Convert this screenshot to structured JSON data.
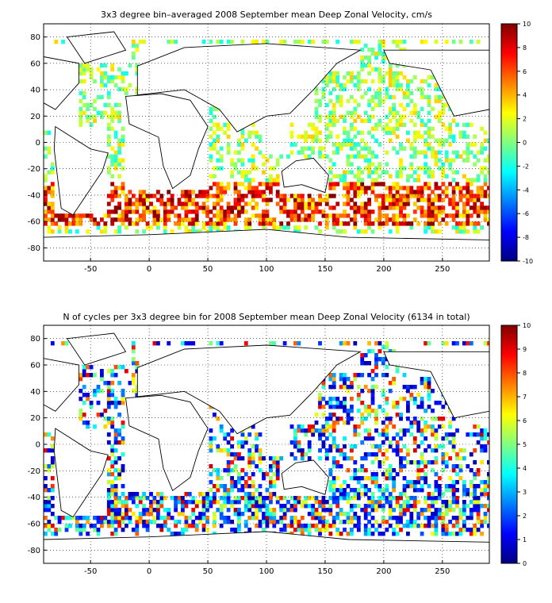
{
  "chart_data": [
    {
      "type": "heatmap",
      "title": "3x3 degree bin–averaged 2008 September mean Deep Zonal Velocity, cm/s",
      "xlabel": "",
      "ylabel": "",
      "xlim": [
        -90,
        290
      ],
      "ylim": [
        -90,
        90
      ],
      "x_ticks": [
        "-50",
        "0",
        "50",
        "100",
        "150",
        "200",
        "250"
      ],
      "y_ticks": [
        "80",
        "60",
        "40",
        "20",
        "0",
        "-20",
        "-40",
        "-60",
        "-80"
      ],
      "grid": "dotted",
      "colorbar": {
        "range": [
          -10,
          10
        ],
        "ticks": [
          "10",
          "8",
          "6",
          "4",
          "2",
          "0",
          "-2",
          "-4",
          "-6",
          "-8",
          "-10"
        ]
      },
      "bin_size_deg": 3,
      "colors": {
        "high": "#800000",
        "mid": "#80ff80",
        "low": "#000080"
      }
    },
    {
      "type": "heatmap",
      "title": "N of cycles per 3x3 degree bin for 2008 September mean Deep Zonal Velocity (6134 in total)",
      "xlabel": "",
      "ylabel": "",
      "xlim": [
        -90,
        290
      ],
      "ylim": [
        -90,
        90
      ],
      "x_ticks": [
        "-50",
        "0",
        "50",
        "100",
        "150",
        "200",
        "250"
      ],
      "y_ticks": [
        "80",
        "60",
        "40",
        "20",
        "0",
        "-20",
        "-40",
        "-60",
        "-80"
      ],
      "grid": "dotted",
      "colorbar": {
        "range": [
          0,
          10
        ],
        "ticks": [
          "10",
          "9",
          "8",
          "7",
          "6",
          "5",
          "4",
          "3",
          "2",
          "1",
          "0"
        ]
      },
      "bin_size_deg": 3,
      "colors": {
        "high": "#800000",
        "mid": "#80ff80",
        "low": "#000080"
      }
    }
  ]
}
